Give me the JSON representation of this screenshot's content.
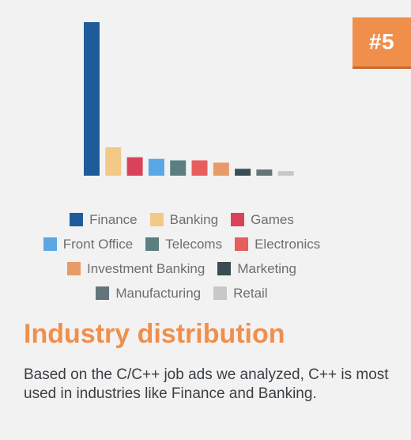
{
  "badge": "#5",
  "title": "Industry distribution",
  "description": "Based on the C/C++ job ads we analyzed, C++ is most used in industries like Finance and Banking.",
  "chart_data": {
    "type": "bar",
    "categories": [
      "Finance",
      "Banking",
      "Games",
      "Front Office",
      "Telecoms",
      "Electronics",
      "Investment Banking",
      "Marketing",
      "Manufacturing",
      "Retail"
    ],
    "values": [
      100,
      18.5,
      12,
      11,
      10,
      10,
      8.5,
      4.5,
      4,
      3
    ],
    "colors": [
      "#1f5b99",
      "#f2c987",
      "#d9435a",
      "#5aa7e6",
      "#5b7f80",
      "#e85d5d",
      "#e89a68",
      "#3b4d52",
      "#64747a",
      "#c8c8c8"
    ],
    "title": "",
    "xlabel": "",
    "ylabel": "",
    "ylim": [
      0,
      100
    ],
    "grid": false,
    "legend_position": "bottom",
    "legend_rows": [
      [
        0,
        1,
        2
      ],
      [
        3,
        4,
        5
      ],
      [
        6,
        7
      ],
      [
        8,
        9
      ]
    ]
  }
}
